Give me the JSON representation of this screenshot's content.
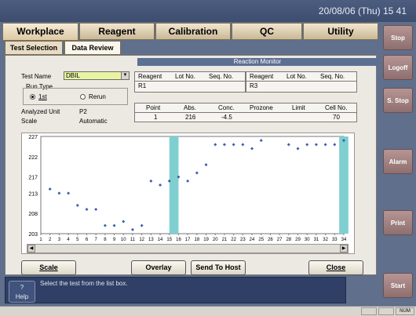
{
  "header": {
    "datetime": "20/08/06 (Thu) 15 41"
  },
  "tabs": [
    {
      "label": "Workplace"
    },
    {
      "label": "Reagent"
    },
    {
      "label": "Calibration"
    },
    {
      "label": "QC"
    },
    {
      "label": "Utility"
    }
  ],
  "subtabs": [
    {
      "label": "Test Selection"
    },
    {
      "label": "Data Review"
    }
  ],
  "panel": {
    "title": "Reaction Monitor"
  },
  "form": {
    "test_name_label": "Test Name",
    "test_name_value": "DBIL",
    "run_type_label": "Run Type",
    "run_1st": "1st",
    "run_rerun": "Rerun",
    "analyzed_unit_label": "Analyzed Unit",
    "analyzed_unit_value": "P2",
    "scale_label": "Scale",
    "scale_value": "Automatic"
  },
  "reagent_table": {
    "headers": [
      "Reagent",
      "Lot No.",
      "Seq. No.",
      "Reagent",
      "Lot No.",
      "Seq. No."
    ],
    "row": [
      "R1",
      "",
      "",
      "R3",
      "",
      ""
    ]
  },
  "point_table": {
    "headers": [
      "Point",
      "Abs.",
      "Conc.",
      "Prozone",
      "Limit",
      "Cell No."
    ],
    "row": [
      "1",
      "216",
      "-4.5",
      "",
      "",
      "70"
    ]
  },
  "chart_data": {
    "type": "scatter",
    "ylim": [
      203,
      227
    ],
    "yticks": [
      "227",
      "222",
      "217",
      "213",
      "208",
      "203"
    ],
    "xlim": [
      1,
      34
    ],
    "xticks": [
      "1",
      "2",
      "3",
      "4",
      "5",
      "6",
      "7",
      "8",
      "9",
      "10",
      "11",
      "12",
      "13",
      "14",
      "15",
      "16",
      "17",
      "18",
      "19",
      "20",
      "21",
      "22",
      "23",
      "24",
      "25",
      "26",
      "27",
      "28",
      "29",
      "30",
      "31",
      "32",
      "33",
      "34"
    ],
    "highlight_bands": [
      [
        15,
        16
      ],
      [
        33.5,
        34.5
      ]
    ],
    "band_color": "#7fcfd0",
    "point_color": "#3a5fb0",
    "points": [
      [
        2,
        214
      ],
      [
        3,
        213
      ],
      [
        4,
        213
      ],
      [
        5,
        210
      ],
      [
        6,
        209
      ],
      [
        7,
        209
      ],
      [
        8,
        205
      ],
      [
        9,
        205
      ],
      [
        10,
        206
      ],
      [
        11,
        204
      ],
      [
        12,
        205
      ],
      [
        13,
        216
      ],
      [
        14,
        215
      ],
      [
        15,
        216
      ],
      [
        16,
        217
      ],
      [
        17,
        216
      ],
      [
        18,
        218
      ],
      [
        19,
        220
      ],
      [
        20,
        225
      ],
      [
        21,
        225
      ],
      [
        22,
        225
      ],
      [
        23,
        225
      ],
      [
        24,
        224
      ],
      [
        25,
        226
      ],
      [
        28,
        225
      ],
      [
        29,
        224
      ],
      [
        30,
        225
      ],
      [
        31,
        225
      ],
      [
        32,
        225
      ],
      [
        33,
        225
      ],
      [
        34,
        226
      ]
    ]
  },
  "buttons": {
    "scale": "Scale",
    "overlay": "Overlay",
    "send_to_host": "Send To Host",
    "close": "Close"
  },
  "status": {
    "message": "Select the test from the list box.",
    "help_q": "?",
    "help_label": "Help"
  },
  "side": {
    "stop": "Stop",
    "logoff": "Logoff",
    "sstop": "S. Stop",
    "alarm": "Alarm",
    "print": "Print",
    "start": "Start"
  },
  "bottom": {
    "num": "NUM"
  }
}
